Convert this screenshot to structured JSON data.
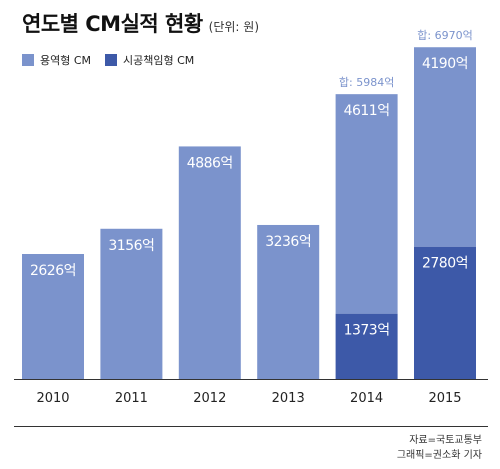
{
  "title": "연도별 CM실적 현황",
  "unit_note": "(단위: 원)",
  "source_line1": "자료=국토교통부",
  "source_line2": "그래픽=권소화 기자",
  "colors": {
    "service_cm": "#7b93cc",
    "construction_cm": "#3d59a8",
    "total_label": "#7b93cc",
    "axis": "#333333"
  },
  "chart_data": {
    "type": "bar",
    "stacked": true,
    "categories": [
      "2010",
      "2011",
      "2012",
      "2013",
      "2014",
      "2015"
    ],
    "series": [
      {
        "name": "용역형 CM",
        "values": [
          2626,
          3156,
          4886,
          3236,
          4611,
          4190
        ],
        "labels": [
          "2626억",
          "3156억",
          "4886억",
          "3236억",
          "4611억",
          "4190억"
        ]
      },
      {
        "name": "시공책임형 CM",
        "values": [
          0,
          0,
          0,
          0,
          1373,
          2780
        ],
        "labels": [
          "",
          "",
          "",
          "",
          "1373억",
          "2780억"
        ]
      }
    ],
    "totals": [
      null,
      null,
      null,
      null,
      5984,
      6970
    ],
    "total_labels": [
      "",
      "",
      "",
      "",
      "합: 5984억",
      "합: 6970억"
    ],
    "ylim": [
      0,
      7000
    ],
    "legend": "top-left",
    "grid": false
  }
}
